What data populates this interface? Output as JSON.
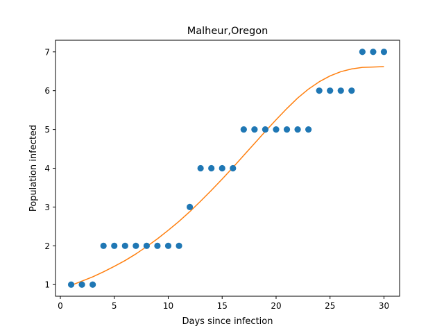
{
  "chart_data": {
    "type": "scatter",
    "title": "Malheur,Oregon",
    "xlabel": "Days since infection",
    "ylabel": "Population infected",
    "xlim": [
      -0.45,
      31.45
    ],
    "ylim": [
      0.7,
      7.3
    ],
    "xticks": [
      0,
      5,
      10,
      15,
      20,
      25,
      30
    ],
    "yticks": [
      1,
      2,
      3,
      4,
      5,
      6,
      7
    ],
    "grid": false,
    "series": [
      {
        "kind": "points",
        "color": "#1f77b4",
        "x": [
          1,
          2,
          3,
          4,
          5,
          6,
          7,
          8,
          9,
          10,
          11,
          12,
          13,
          14,
          15,
          16,
          17,
          18,
          19,
          20,
          21,
          22,
          23,
          24,
          25,
          26,
          27,
          28,
          29,
          30
        ],
        "y": [
          1,
          1,
          1,
          2,
          2,
          2,
          2,
          2,
          2,
          2,
          2,
          3,
          4,
          4,
          4,
          4,
          5,
          5,
          5,
          5,
          5,
          5,
          5,
          6,
          6,
          6,
          6,
          7,
          7,
          7
        ]
      },
      {
        "kind": "fit-line",
        "color": "#ff7f0e",
        "x": [
          1,
          2,
          3,
          4,
          5,
          6,
          7,
          8,
          9,
          10,
          11,
          12,
          13,
          14,
          15,
          16,
          17,
          18,
          19,
          20,
          21,
          22,
          23,
          24,
          25,
          26,
          27,
          28,
          29,
          30
        ],
        "y": [
          0.98,
          1.09,
          1.2,
          1.33,
          1.47,
          1.62,
          1.79,
          1.98,
          2.18,
          2.4,
          2.63,
          2.88,
          3.15,
          3.43,
          3.72,
          4.02,
          4.33,
          4.64,
          4.95,
          5.25,
          5.54,
          5.81,
          6.04,
          6.23,
          6.38,
          6.49,
          6.56,
          6.6,
          6.61,
          6.62
        ]
      }
    ]
  }
}
